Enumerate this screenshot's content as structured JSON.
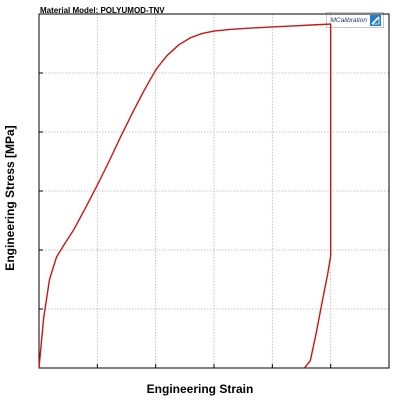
{
  "chart_data": {
    "type": "line",
    "title": "Material Model: POLYUMOD-TNV",
    "xlabel": "Engineering Strain",
    "ylabel": "Engineering Stress [MPa]",
    "xlim": [
      0,
      6
    ],
    "ylim": [
      0,
      6
    ],
    "grid": true,
    "x_ticks": [
      0,
      1,
      2,
      3,
      4,
      5,
      6
    ],
    "y_ticks": [
      0,
      1,
      2,
      3,
      4,
      5,
      6
    ],
    "tick_labels_shown": false,
    "series": [
      {
        "color": "#cc1414",
        "x": [
          0.0,
          0.08,
          0.18,
          0.3,
          0.45,
          0.6,
          0.8,
          1.0,
          1.2,
          1.4,
          1.6,
          1.8,
          2.0,
          2.1,
          2.2,
          2.4,
          2.6,
          2.8,
          3.0,
          3.3,
          3.6,
          4.0,
          4.4,
          4.8,
          5.0,
          5.0,
          4.95,
          4.85,
          4.75,
          4.65,
          4.55
        ],
        "y": [
          0.0,
          0.85,
          1.5,
          1.88,
          2.12,
          2.35,
          2.72,
          3.1,
          3.5,
          3.92,
          4.32,
          4.7,
          5.05,
          5.18,
          5.3,
          5.48,
          5.6,
          5.67,
          5.71,
          5.74,
          5.76,
          5.78,
          5.8,
          5.82,
          5.83,
          1.9,
          1.6,
          1.1,
          0.58,
          0.12,
          0.0
        ]
      }
    ]
  },
  "logo": {
    "text": "MCalibration"
  }
}
